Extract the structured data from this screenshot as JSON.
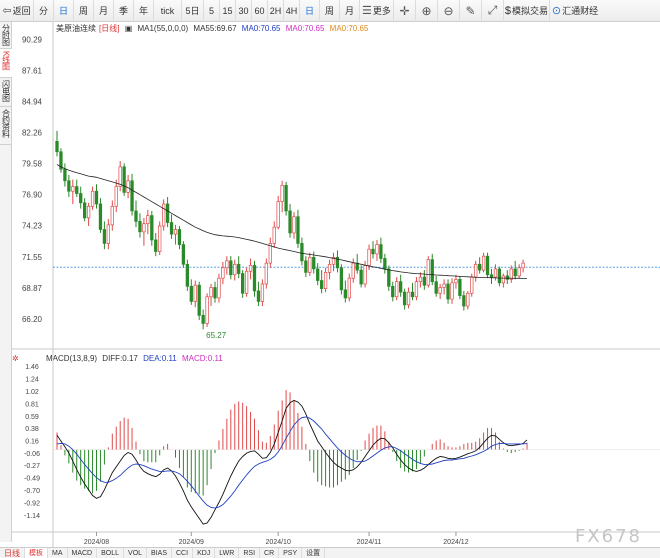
{
  "toolbar": {
    "back": "返回",
    "periods": [
      "分",
      "日",
      "周",
      "月",
      "季",
      "年",
      "tick",
      "5日",
      "5",
      "15",
      "30",
      "60",
      "2H",
      "4H",
      "日",
      "周",
      "月"
    ],
    "more": "更多",
    "simulated_trading": "模拟交易",
    "brand": "汇通财经"
  },
  "side_tabs": [
    "分时图",
    "K线图",
    "闪电图",
    "合约资料"
  ],
  "price_legend": {
    "name": "美原油连续",
    "period": "[日线]",
    "ma1": "MA1(55,0,0,0)",
    "ma55": "MA55:69.67",
    "ma_a": "MA0:70.65",
    "ma_b": "MA0:70.65",
    "ma_c": "MA0:70.65"
  },
  "macd_legend": {
    "name": "MACD(13,8,9)",
    "diff": "DIFF:0.17",
    "dea": "DEA:0.11",
    "macd": "MACD:0.11"
  },
  "bottom_tabs": [
    "日线",
    "模板",
    "MA",
    "MACD",
    "BOLL",
    "VOL",
    "BIAS",
    "CCI",
    "KDJ",
    "LWR",
    "RSI",
    "CR",
    "PSY",
    "设置"
  ],
  "watermark": "FX678",
  "colors": {
    "up": "#e04a4a",
    "down": "#2a8a2a",
    "ma": "#222222",
    "diff": "#111111",
    "dea": "#2040c0",
    "last_price_line": "#5aa0e0"
  },
  "chart_data": [
    {
      "type": "candlestick",
      "title": "美原油连续",
      "y_ticks": [
        90.29,
        87.61,
        84.94,
        82.26,
        79.58,
        76.9,
        74.23,
        71.55,
        68.87,
        66.2
      ],
      "ylim": [
        64.2,
        91.1
      ],
      "x_labels": [
        "2024/08",
        "2024/09",
        "2024/10",
        "2024/11",
        "2024/12"
      ],
      "low_annotation": "65.27",
      "ohlc": [
        [
          81.5,
          82.4,
          80.2,
          80.6
        ],
        [
          80.6,
          80.9,
          78.8,
          79.1
        ],
        [
          79.1,
          79.6,
          77.6,
          78.1
        ],
        [
          78.1,
          78.6,
          76.7,
          77.2
        ],
        [
          77.2,
          78.2,
          76.1,
          77.6
        ],
        [
          77.6,
          78.2,
          76.7,
          77.0
        ],
        [
          77.0,
          77.6,
          75.7,
          76.2
        ],
        [
          76.2,
          76.6,
          74.6,
          74.9
        ],
        [
          74.9,
          76.2,
          74.2,
          75.9
        ],
        [
          75.9,
          77.6,
          75.6,
          77.2
        ],
        [
          77.2,
          77.8,
          75.7,
          76.1
        ],
        [
          76.1,
          76.6,
          73.6,
          73.9
        ],
        [
          73.9,
          74.6,
          72.2,
          72.7
        ],
        [
          72.7,
          74.8,
          72.2,
          74.3
        ],
        [
          74.3,
          76.4,
          73.8,
          75.9
        ],
        [
          75.9,
          78.2,
          75.4,
          77.6
        ],
        [
          77.6,
          79.8,
          77.2,
          79.3
        ],
        [
          79.3,
          79.6,
          76.8,
          77.1
        ],
        [
          77.1,
          78.6,
          76.6,
          78.1
        ],
        [
          78.1,
          78.7,
          75.1,
          75.5
        ],
        [
          75.5,
          76.4,
          74.1,
          74.6
        ],
        [
          74.6,
          75.3,
          73.2,
          73.7
        ],
        [
          73.7,
          74.9,
          72.5,
          74.4
        ],
        [
          74.4,
          75.6,
          73.5,
          75.1
        ],
        [
          75.1,
          75.5,
          72.5,
          73.0
        ],
        [
          73.0,
          73.6,
          71.6,
          72.0
        ],
        [
          72.0,
          74.6,
          71.7,
          74.2
        ],
        [
          74.2,
          76.5,
          73.8,
          76.1
        ],
        [
          76.1,
          76.7,
          74.1,
          74.5
        ],
        [
          74.5,
          75.2,
          73.1,
          73.5
        ],
        [
          73.5,
          74.3,
          72.6,
          73.9
        ],
        [
          73.9,
          74.2,
          72.2,
          72.6
        ],
        [
          72.6,
          72.9,
          70.6,
          70.9
        ],
        [
          70.9,
          71.3,
          68.6,
          69.0
        ],
        [
          69.0,
          69.6,
          67.4,
          67.7
        ],
        [
          67.7,
          69.5,
          67.2,
          69.1
        ],
        [
          69.1,
          69.4,
          66.1,
          66.5
        ],
        [
          66.5,
          67.0,
          65.3,
          65.8
        ],
        [
          65.8,
          68.4,
          65.5,
          68.1
        ],
        [
          68.1,
          69.2,
          67.3,
          68.9
        ],
        [
          68.9,
          69.4,
          67.6,
          68.0
        ],
        [
          68.0,
          70.1,
          67.6,
          69.7
        ],
        [
          69.7,
          71.1,
          69.2,
          70.6
        ],
        [
          70.6,
          71.6,
          70.0,
          71.2
        ],
        [
          71.2,
          71.6,
          69.6,
          70.0
        ],
        [
          70.0,
          71.3,
          69.5,
          70.9
        ],
        [
          70.9,
          71.6,
          69.7,
          70.1
        ],
        [
          70.1,
          70.4,
          68.0,
          68.4
        ],
        [
          68.4,
          70.6,
          68.1,
          70.3
        ],
        [
          70.3,
          71.4,
          69.6,
          70.8
        ],
        [
          70.8,
          71.2,
          68.1,
          68.6
        ],
        [
          68.6,
          69.4,
          67.3,
          67.7
        ],
        [
          67.7,
          69.6,
          67.3,
          69.2
        ],
        [
          69.2,
          71.4,
          68.8,
          71.0
        ],
        [
          71.0,
          73.2,
          70.6,
          72.7
        ],
        [
          72.7,
          74.6,
          72.3,
          74.1
        ],
        [
          74.1,
          76.8,
          73.9,
          76.3
        ],
        [
          76.3,
          78.1,
          75.4,
          77.7
        ],
        [
          77.7,
          78.0,
          75.1,
          75.5
        ],
        [
          75.5,
          76.1,
          73.2,
          73.6
        ],
        [
          73.6,
          75.4,
          73.1,
          75.0
        ],
        [
          75.0,
          75.6,
          72.3,
          72.7
        ],
        [
          72.7,
          73.2,
          70.8,
          71.2
        ],
        [
          71.2,
          71.6,
          69.8,
          70.2
        ],
        [
          70.2,
          71.9,
          69.9,
          71.5
        ],
        [
          71.5,
          72.0,
          70.1,
          70.5
        ],
        [
          70.5,
          71.0,
          69.1,
          69.5
        ],
        [
          69.5,
          70.4,
          68.4,
          68.8
        ],
        [
          68.8,
          70.6,
          68.5,
          70.2
        ],
        [
          70.2,
          71.3,
          69.6,
          70.9
        ],
        [
          70.9,
          71.9,
          70.3,
          71.5
        ],
        [
          71.5,
          72.1,
          70.2,
          70.6
        ],
        [
          70.6,
          70.9,
          68.3,
          68.7
        ],
        [
          68.7,
          69.5,
          67.6,
          68.0
        ],
        [
          68.0,
          70.1,
          67.7,
          69.7
        ],
        [
          69.7,
          71.4,
          69.3,
          71.0
        ],
        [
          71.0,
          71.8,
          70.1,
          70.4
        ],
        [
          70.4,
          70.8,
          68.9,
          69.2
        ],
        [
          69.2,
          71.2,
          68.9,
          70.8
        ],
        [
          70.8,
          72.6,
          70.4,
          72.2
        ],
        [
          72.2,
          72.9,
          71.4,
          71.8
        ],
        [
          71.8,
          73.0,
          71.2,
          72.6
        ],
        [
          72.6,
          73.2,
          71.0,
          71.4
        ],
        [
          71.4,
          71.8,
          70.1,
          70.5
        ],
        [
          70.5,
          70.8,
          68.6,
          69.0
        ],
        [
          69.0,
          69.4,
          67.7,
          68.1
        ],
        [
          68.1,
          69.8,
          67.8,
          69.4
        ],
        [
          69.4,
          70.0,
          68.1,
          68.5
        ],
        [
          68.5,
          68.8,
          67.0,
          67.4
        ],
        [
          67.4,
          68.9,
          67.1,
          68.5
        ],
        [
          68.5,
          69.3,
          67.8,
          68.1
        ],
        [
          68.1,
          69.8,
          67.8,
          69.4
        ],
        [
          69.4,
          70.2,
          68.9,
          69.8
        ],
        [
          69.8,
          70.4,
          68.7,
          69.1
        ],
        [
          69.1,
          71.6,
          68.9,
          71.3
        ],
        [
          71.3,
          71.8,
          69.1,
          69.4
        ],
        [
          69.4,
          69.9,
          68.1,
          68.4
        ],
        [
          68.4,
          69.2,
          67.9,
          68.9
        ],
        [
          68.9,
          69.6,
          68.3,
          69.2
        ],
        [
          69.2,
          69.6,
          67.5,
          67.9
        ],
        [
          67.9,
          69.7,
          67.5,
          69.3
        ],
        [
          69.3,
          70.0,
          68.8,
          69.6
        ],
        [
          69.6,
          69.9,
          67.9,
          68.2
        ],
        [
          68.2,
          68.6,
          66.9,
          67.3
        ],
        [
          67.3,
          68.6,
          67.0,
          68.4
        ],
        [
          68.4,
          70.1,
          68.1,
          69.8
        ],
        [
          69.8,
          71.2,
          69.4,
          70.9
        ],
        [
          70.9,
          71.5,
          70.1,
          70.4
        ],
        [
          70.4,
          71.9,
          70.2,
          71.6
        ],
        [
          71.6,
          71.9,
          69.7,
          70.0
        ],
        [
          70.0,
          70.5,
          69.2,
          69.8
        ],
        [
          69.8,
          70.9,
          69.5,
          70.5
        ],
        [
          70.5,
          70.7,
          69.0,
          69.3
        ],
        [
          69.3,
          70.1,
          68.9,
          69.9
        ],
        [
          69.9,
          70.4,
          69.2,
          69.6
        ],
        [
          69.6,
          70.8,
          69.3,
          70.5
        ],
        [
          70.5,
          71.2,
          69.6,
          69.9
        ],
        [
          69.9,
          70.9,
          69.7,
          70.6
        ],
        [
          70.6,
          71.3,
          70.2,
          71.0
        ]
      ],
      "ma55": [
        79.5,
        79.3,
        79.15,
        79.0,
        78.9,
        78.8,
        78.7,
        78.6,
        78.5,
        78.45,
        78.4,
        78.3,
        78.2,
        78.1,
        78.0,
        77.9,
        77.8,
        77.65,
        77.5,
        77.3,
        77.1,
        76.9,
        76.7,
        76.5,
        76.3,
        76.1,
        75.9,
        75.7,
        75.5,
        75.3,
        75.1,
        74.9,
        74.7,
        74.5,
        74.3,
        74.1,
        73.95,
        73.8,
        73.65,
        73.55,
        73.45,
        73.4,
        73.35,
        73.32,
        73.3,
        73.25,
        73.2,
        73.12,
        73.05,
        72.98,
        72.9,
        72.8,
        72.7,
        72.6,
        72.5,
        72.4,
        72.3,
        72.22,
        72.15,
        72.08,
        72.0,
        71.92,
        71.85,
        71.8,
        71.75,
        71.7,
        71.65,
        71.6,
        71.55,
        71.48,
        71.42,
        71.35,
        71.28,
        71.2,
        71.12,
        71.05,
        70.98,
        70.9,
        70.82,
        70.75,
        70.68,
        70.62,
        70.55,
        70.48,
        70.42,
        70.36,
        70.3,
        70.24,
        70.2,
        70.16,
        70.12,
        70.1,
        70.08,
        70.05,
        70.02,
        70.0,
        69.98,
        69.96,
        69.94,
        69.92,
        69.9,
        69.88,
        69.86,
        69.84,
        69.82,
        69.8,
        69.78,
        69.77,
        69.76,
        69.75,
        69.74,
        69.73,
        69.72,
        69.71,
        69.7,
        69.7,
        69.69,
        69.69,
        69.68,
        69.67
      ],
      "last_price": 70.65
    },
    {
      "type": "macd",
      "title": "MACD(13,8,9)",
      "y_ticks": [
        1.46,
        1.24,
        1.02,
        0.81,
        0.59,
        0.38,
        0.16,
        -0.06,
        -0.27,
        -0.49,
        -0.7,
        -0.92,
        -1.14
      ],
      "ylim": [
        -1.35,
        1.6
      ],
      "x_labels": [
        "2024/08",
        "2024/09",
        "2024/10",
        "2024/11",
        "2024/12"
      ],
      "diff": [
        0.25,
        0.15,
        0.05,
        -0.06,
        -0.2,
        -0.35,
        -0.48,
        -0.6,
        -0.7,
        -0.8,
        -0.85,
        -0.82,
        -0.7,
        -0.55,
        -0.4,
        -0.3,
        -0.2,
        -0.1,
        -0.05,
        -0.08,
        -0.18,
        -0.3,
        -0.38,
        -0.42,
        -0.45,
        -0.47,
        -0.43,
        -0.35,
        -0.32,
        -0.37,
        -0.46,
        -0.58,
        -0.72,
        -0.88,
        -1.0,
        -1.1,
        -1.2,
        -1.3,
        -1.28,
        -1.18,
        -1.05,
        -0.92,
        -0.78,
        -0.62,
        -0.46,
        -0.32,
        -0.2,
        -0.12,
        -0.06,
        -0.03,
        -0.02,
        -0.08,
        -0.15,
        -0.14,
        -0.05,
        0.1,
        0.3,
        0.5,
        0.72,
        0.82,
        0.86,
        0.83,
        0.76,
        0.62,
        0.45,
        0.3,
        0.15,
        0.05,
        -0.05,
        -0.14,
        -0.22,
        -0.28,
        -0.32,
        -0.36,
        -0.37,
        -0.35,
        -0.3,
        -0.22,
        -0.12,
        -0.02,
        0.08,
        0.15,
        0.2,
        0.19,
        0.12,
        0.03,
        -0.08,
        -0.18,
        -0.26,
        -0.32,
        -0.36,
        -0.38,
        -0.36,
        -0.32,
        -0.26,
        -0.2,
        -0.15,
        -0.12,
        -0.13,
        -0.15,
        -0.16,
        -0.15,
        -0.13,
        -0.1,
        -0.07,
        -0.05,
        -0.02,
        0.04,
        0.12,
        0.2,
        0.25,
        0.24,
        0.18,
        0.12,
        0.08,
        0.07,
        0.08,
        0.09,
        0.11,
        0.17
      ],
      "dea": [
        0.1,
        0.11,
        0.1,
        0.06,
        0.0,
        -0.08,
        -0.17,
        -0.26,
        -0.34,
        -0.42,
        -0.49,
        -0.54,
        -0.57,
        -0.57,
        -0.54,
        -0.5,
        -0.45,
        -0.38,
        -0.32,
        -0.27,
        -0.25,
        -0.26,
        -0.28,
        -0.31,
        -0.34,
        -0.36,
        -0.38,
        -0.38,
        -0.37,
        -0.37,
        -0.39,
        -0.42,
        -0.48,
        -0.55,
        -0.63,
        -0.72,
        -0.81,
        -0.9,
        -0.97,
        -1.01,
        -1.02,
        -1.0,
        -0.96,
        -0.89,
        -0.81,
        -0.72,
        -0.62,
        -0.53,
        -0.44,
        -0.36,
        -0.29,
        -0.25,
        -0.22,
        -0.2,
        -0.17,
        -0.12,
        -0.04,
        0.07,
        0.2,
        0.32,
        0.43,
        0.51,
        0.56,
        0.57,
        0.55,
        0.5,
        0.43,
        0.36,
        0.27,
        0.19,
        0.11,
        0.03,
        -0.04,
        -0.1,
        -0.15,
        -0.19,
        -0.21,
        -0.21,
        -0.2,
        -0.16,
        -0.11,
        -0.06,
        -0.01,
        0.03,
        0.05,
        0.05,
        0.02,
        -0.02,
        -0.07,
        -0.12,
        -0.17,
        -0.21,
        -0.24,
        -0.26,
        -0.26,
        -0.25,
        -0.23,
        -0.21,
        -0.19,
        -0.18,
        -0.18,
        -0.17,
        -0.16,
        -0.15,
        -0.13,
        -0.11,
        -0.09,
        -0.06,
        -0.03,
        0.01,
        0.06,
        0.09,
        0.11,
        0.11,
        0.1,
        0.1,
        0.1,
        0.1,
        0.1,
        0.11
      ]
    }
  ]
}
